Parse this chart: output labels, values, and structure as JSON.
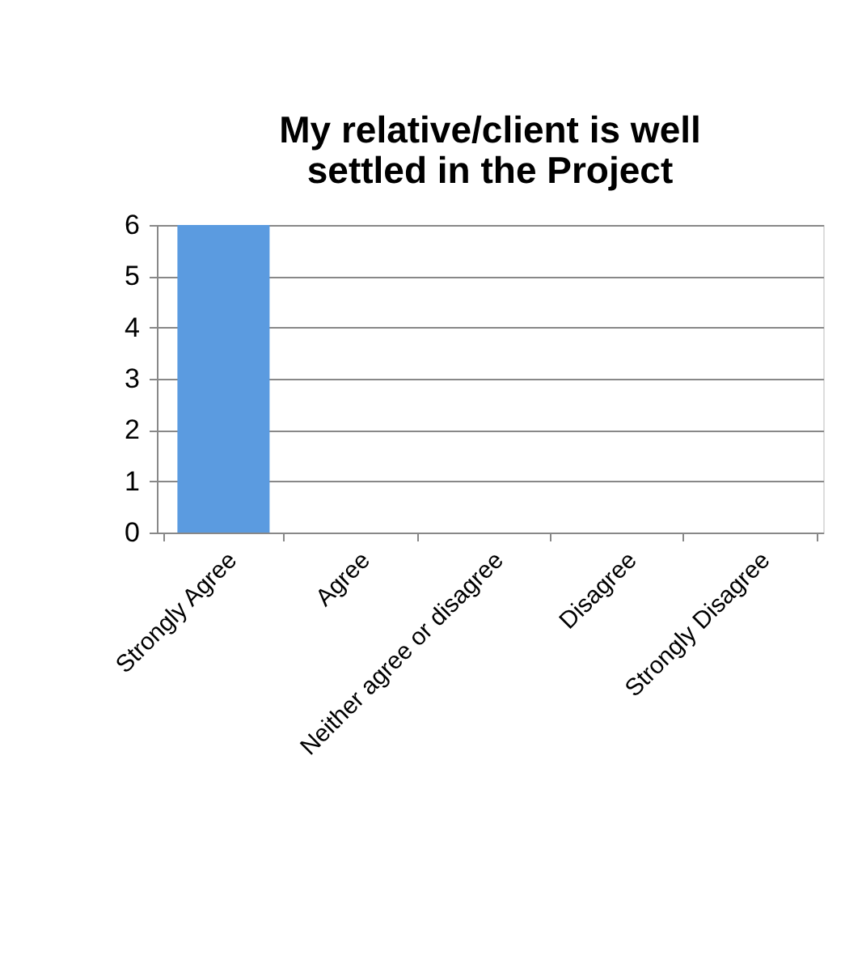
{
  "chart_data": {
    "type": "bar",
    "title": "My relative/client is well settled in the Project",
    "categories": [
      "Strongly Agree",
      "Agree",
      "Neither agree or disagree",
      "Disagree",
      "Strongly Disagree"
    ],
    "values": [
      6,
      0,
      0,
      0,
      0
    ],
    "color": "#5b9be0",
    "ylim": [
      0,
      6
    ],
    "yticks": [
      0,
      1,
      2,
      3,
      4,
      5,
      6
    ],
    "grid": "y"
  }
}
